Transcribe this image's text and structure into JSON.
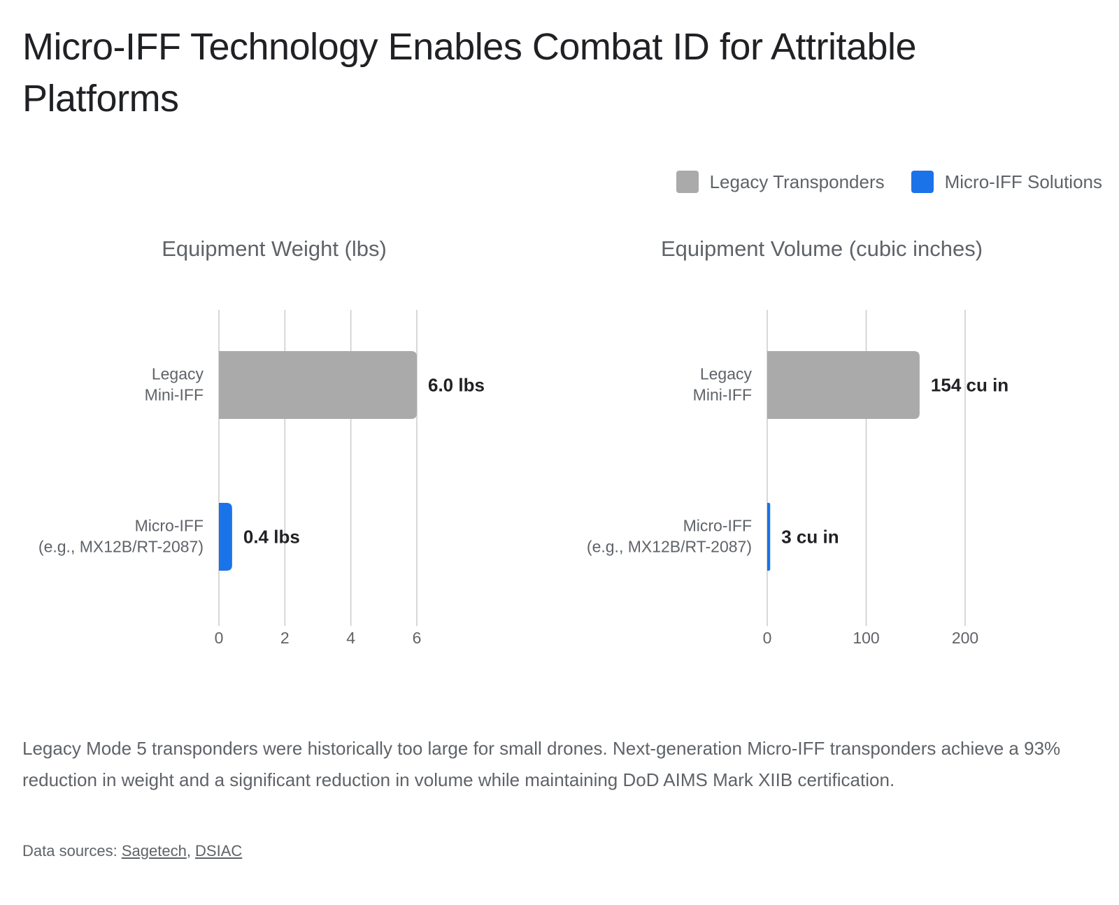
{
  "title": "Micro-IFF Technology Enables Combat ID for Attritable Platforms",
  "legend": [
    {
      "label": "Legacy Transponders",
      "color": "#aaaaaa"
    },
    {
      "label": "Micro-IFF Solutions",
      "color": "#1a73e8"
    }
  ],
  "chart_data": [
    {
      "type": "bar",
      "orientation": "horizontal",
      "title": "Equipment Weight (lbs)",
      "categories": [
        [
          "Legacy",
          "Mini-IFF"
        ],
        [
          "Micro-IFF",
          "(e.g., MX12B/RT-2087)"
        ]
      ],
      "values": [
        6.0,
        0.4
      ],
      "data_labels": [
        "6.0 lbs",
        "0.4 lbs"
      ],
      "colors": [
        "#aaaaaa",
        "#1a73e8"
      ],
      "xlim": [
        0,
        6
      ],
      "ticks": [
        0,
        2,
        4,
        6
      ],
      "tick_labels": [
        "0",
        "2",
        "4",
        "6"
      ],
      "grid": true
    },
    {
      "type": "bar",
      "orientation": "horizontal",
      "title": "Equipment Volume (cubic inches)",
      "categories": [
        [
          "Legacy",
          "Mini-IFF"
        ],
        [
          "Micro-IFF",
          "(e.g., MX12B/RT-2087)"
        ]
      ],
      "values": [
        154,
        3
      ],
      "data_labels": [
        "154 cu in",
        "3 cu in"
      ],
      "colors": [
        "#aaaaaa",
        "#1a73e8"
      ],
      "xlim": [
        0,
        200
      ],
      "ticks": [
        0,
        100,
        200
      ],
      "tick_labels": [
        "0",
        "100",
        "200"
      ],
      "grid": true
    }
  ],
  "description": "Legacy Mode 5 transponders were historically too large for small drones. Next-generation Micro-IFF transponders achieve a 93% reduction in weight and a significant reduction in volume while maintaining DoD AIMS Mark XIIB certification.",
  "sources": {
    "prefix": "Data sources: ",
    "links": [
      "Sagetech",
      "DSIAC"
    ],
    "separator": ", "
  }
}
